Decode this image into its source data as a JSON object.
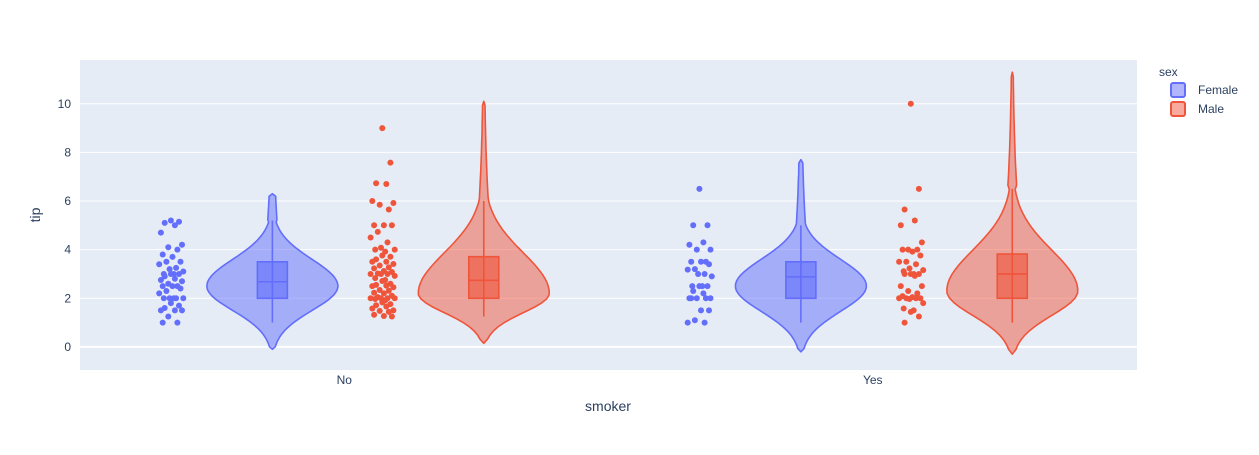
{
  "chart_data": {
    "type": "violin",
    "title": "",
    "xlabel": "smoker",
    "ylabel": "tip",
    "categories": [
      "No",
      "Yes"
    ],
    "y_ticks": [
      0,
      2,
      4,
      6,
      8,
      10
    ],
    "ylim": [
      -0.95,
      11.8
    ],
    "grid": true,
    "legend": {
      "title": "sex",
      "placement": "top-right"
    },
    "series": [
      {
        "name": "Female",
        "color": "#636efa",
        "groups": [
          {
            "category": "No",
            "violin": {
              "min": -0.1,
              "max": 6.3,
              "peak": 2.5
            },
            "box": {
              "lowerfence": 1.0,
              "q1": 2.0,
              "median": 2.68,
              "q3": 3.5,
              "upperfence": 5.2
            },
            "points": [
              5.2,
              5.15,
              5.1,
              5.0,
              4.7,
              4.2,
              4.1,
              4.0,
              3.8,
              3.7,
              3.5,
              3.5,
              3.4,
              3.25,
              3.2,
              3.1,
              3.0,
              3.0,
              3.0,
              3.0,
              2.9,
              2.8,
              2.75,
              2.7,
              2.6,
              2.5,
              2.5,
              2.5,
              2.4,
              2.3,
              2.2,
              2.0,
              2.0,
              2.0,
              2.0,
              2.0,
              1.8,
              1.7,
              1.6,
              1.5,
              1.5,
              1.5,
              1.25,
              1.0,
              1.0
            ]
          },
          {
            "category": "Yes",
            "violin": {
              "min": -0.2,
              "max": 7.7,
              "peak": 2.5
            },
            "box": {
              "lowerfence": 1.0,
              "q1": 2.0,
              "median": 2.88,
              "q3": 3.5,
              "upperfence": 5.0
            },
            "points": [
              6.5,
              5.0,
              5.0,
              4.3,
              4.2,
              4.0,
              4.0,
              3.5,
              3.5,
              3.5,
              3.4,
              3.2,
              3.18,
              3.0,
              3.0,
              2.9,
              2.5,
              2.5,
              2.5,
              2.5,
              2.3,
              2.2,
              2.0,
              2.0,
              2.0,
              2.0,
              2.0,
              1.5,
              1.5,
              1.1,
              1.0,
              1.0
            ]
          }
        ]
      },
      {
        "name": "Male",
        "color": "#ef553b",
        "groups": [
          {
            "category": "No",
            "violin": {
              "min": 0.15,
              "max": 10.1,
              "peak": 2.2
            },
            "box": {
              "lowerfence": 1.25,
              "q1": 2.0,
              "median": 2.74,
              "q3": 3.71,
              "upperfence": 6.0
            },
            "points": [
              9.0,
              7.58,
              6.73,
              6.7,
              6.0,
              5.92,
              5.85,
              5.65,
              5.0,
              5.0,
              5.0,
              4.73,
              4.5,
              4.3,
              4.08,
              4.0,
              4.0,
              3.92,
              3.76,
              3.71,
              3.6,
              3.5,
              3.5,
              3.41,
              3.35,
              3.27,
              3.23,
              3.12,
              3.08,
              3.02,
              3.0,
              3.0,
              3.0,
              2.92,
              2.83,
              2.75,
              2.71,
              2.6,
              2.55,
              2.52,
              2.5,
              2.45,
              2.34,
              2.31,
              2.23,
              2.2,
              2.1,
              2.05,
              2.0,
              2.0,
              2.0,
              2.0,
              1.97,
              1.92,
              1.83,
              1.76,
              1.71,
              1.66,
              1.58,
              1.5,
              1.48,
              1.44,
              1.32,
              1.27,
              1.25
            ]
          },
          {
            "category": "Yes",
            "violin": {
              "min": -0.3,
              "max": 11.3,
              "peak": 2.3
            },
            "box": {
              "lowerfence": 1.0,
              "q1": 2.0,
              "median": 3.0,
              "q3": 3.82,
              "upperfence": 6.5
            },
            "points": [
              10.0,
              6.5,
              5.65,
              5.2,
              5.0,
              4.3,
              4.0,
              4.0,
              4.0,
              3.92,
              3.76,
              3.5,
              3.5,
              3.4,
              3.23,
              3.16,
              3.11,
              3.0,
              3.0,
              3.0,
              3.0,
              2.92,
              2.5,
              2.5,
              2.3,
              2.2,
              2.09,
              2.05,
              2.0,
              2.0,
              2.0,
              2.0,
              1.97,
              1.8,
              1.58,
              1.5,
              1.44,
              1.25,
              1.0
            ]
          }
        ]
      }
    ]
  }
}
